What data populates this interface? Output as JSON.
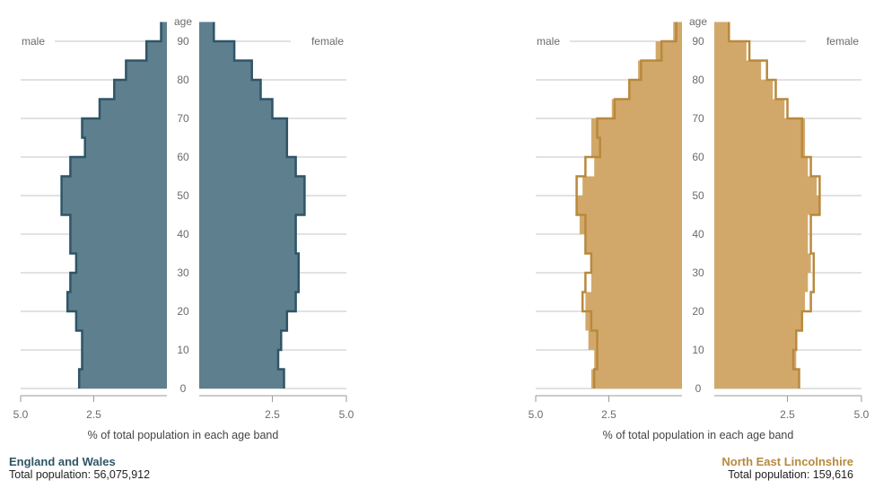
{
  "chart_data": [
    {
      "type": "population-pyramid",
      "place": "England and Wales",
      "total_label": "Total population: 56,075,912",
      "color": "#5e7f8e",
      "outline_color": "#2f5566",
      "labels": {
        "male": "male",
        "female": "female",
        "age": "age"
      },
      "xlabel": "% of total population in each age band",
      "xticks": [
        "5.0",
        "2.5",
        "2.5",
        "5.0"
      ],
      "xlim": [
        0,
        5
      ],
      "ylim": [
        0,
        95
      ],
      "yticks": [
        0,
        10,
        20,
        30,
        40,
        50,
        60,
        70,
        80,
        90
      ],
      "band_start_ages": [
        0,
        5,
        10,
        15,
        20,
        25,
        30,
        35,
        40,
        45,
        50,
        55,
        60,
        65,
        70,
        75,
        80,
        85,
        90
      ],
      "male_local": [
        3.0,
        2.9,
        2.9,
        3.1,
        3.4,
        3.3,
        3.1,
        3.3,
        3.3,
        3.6,
        3.6,
        3.3,
        2.8,
        2.9,
        2.3,
        1.8,
        1.4,
        0.7,
        0.2
      ],
      "male_comparator": [
        3.0,
        2.9,
        2.9,
        3.1,
        3.4,
        3.3,
        3.1,
        3.3,
        3.3,
        3.6,
        3.6,
        3.3,
        2.8,
        2.9,
        2.3,
        1.8,
        1.4,
        0.7,
        0.2
      ],
      "female_local": [
        2.9,
        2.7,
        2.8,
        3.0,
        3.3,
        3.4,
        3.4,
        3.3,
        3.3,
        3.6,
        3.6,
        3.3,
        3.0,
        3.0,
        2.5,
        2.1,
        1.8,
        1.2,
        0.5
      ],
      "female_comparator": [
        2.9,
        2.7,
        2.8,
        3.0,
        3.3,
        3.4,
        3.4,
        3.3,
        3.3,
        3.6,
        3.6,
        3.3,
        3.0,
        3.0,
        2.5,
        2.1,
        1.8,
        1.2,
        0.5
      ]
    },
    {
      "type": "population-pyramid",
      "place": "North East Lincolnshire",
      "total_label": "Total population: 159,616",
      "color": "#d2a86a",
      "outline_color": "#b8893d",
      "labels": {
        "male": "male",
        "female": "female",
        "age": "age"
      },
      "xlabel": "% of total population in each age band",
      "xticks": [
        "5.0",
        "2.5",
        "2.5",
        "5.0"
      ],
      "xlim": [
        0,
        5
      ],
      "ylim": [
        0,
        95
      ],
      "yticks": [
        0,
        10,
        20,
        30,
        40,
        50,
        60,
        70,
        80,
        90
      ],
      "band_start_ages": [
        0,
        5,
        10,
        15,
        20,
        25,
        30,
        35,
        40,
        45,
        50,
        55,
        60,
        65,
        70,
        75,
        80,
        85,
        90
      ],
      "male_local": [
        3.1,
        3.0,
        3.2,
        3.3,
        3.3,
        3.1,
        3.1,
        3.3,
        3.5,
        3.6,
        3.4,
        3.0,
        3.1,
        3.1,
        2.4,
        1.8,
        1.5,
        0.9,
        0.3
      ],
      "male_comparator": [
        3.0,
        2.9,
        2.9,
        3.1,
        3.4,
        3.3,
        3.1,
        3.3,
        3.3,
        3.6,
        3.6,
        3.3,
        2.8,
        2.9,
        2.3,
        1.8,
        1.4,
        0.7,
        0.2
      ],
      "female_local": [
        2.9,
        2.8,
        2.8,
        3.0,
        3.1,
        3.2,
        3.3,
        3.2,
        3.2,
        3.6,
        3.5,
        3.2,
        3.1,
        3.1,
        2.4,
        2.0,
        1.6,
        1.1,
        0.5
      ],
      "female_comparator": [
        2.9,
        2.7,
        2.8,
        3.0,
        3.3,
        3.4,
        3.4,
        3.3,
        3.3,
        3.6,
        3.6,
        3.3,
        3.0,
        3.0,
        2.5,
        2.1,
        1.8,
        1.2,
        0.5
      ]
    }
  ]
}
